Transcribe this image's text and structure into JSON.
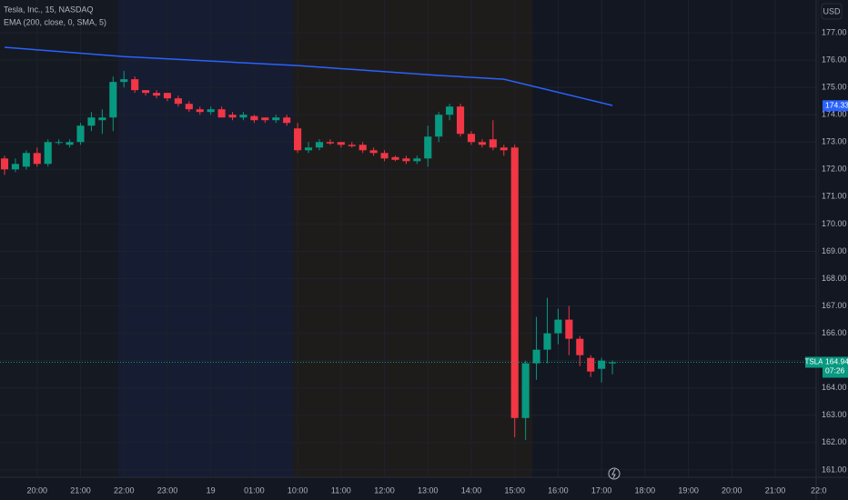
{
  "chart_data": {
    "type": "candlestick",
    "title": "Tesla, Inc., 15, NASDAQ",
    "indicator": "EMA (200, close, 0, SMA, 5)",
    "currency": "USD",
    "symbol": "TSLA",
    "countdown": "07:26",
    "up_color": "#089981",
    "down_color": "#f23645",
    "open": [
      172.4,
      172.0,
      172.1,
      172.6,
      172.2,
      173.0,
      172.9,
      173.0,
      173.6,
      173.8,
      173.9,
      175.2,
      175.3,
      174.9,
      174.8,
      174.8,
      174.6,
      174.4,
      174.2,
      174.1,
      174.2,
      174.0,
      173.9,
      173.95,
      173.9,
      173.8,
      173.9,
      173.5,
      172.7,
      172.8,
      173.0,
      173.0,
      172.9,
      172.9,
      172.7,
      172.6,
      172.45,
      172.4,
      172.3,
      172.4,
      173.2,
      174.0,
      174.3,
      173.3,
      173.0,
      173.1,
      172.8,
      172.8,
      162.9,
      164.9,
      165.4,
      166.0,
      166.5,
      165.8,
      165.1,
      164.7,
      164.9
    ],
    "high": [
      172.5,
      172.4,
      172.7,
      172.8,
      173.1,
      173.1,
      173.1,
      173.7,
      174.1,
      174.2,
      175.4,
      175.6,
      175.4,
      174.9,
      174.9,
      174.8,
      174.7,
      174.5,
      174.3,
      174.3,
      174.3,
      174.1,
      174.1,
      174.0,
      173.9,
      174.0,
      174.0,
      173.7,
      173.0,
      173.1,
      173.1,
      173.0,
      173.0,
      173.0,
      172.8,
      172.7,
      172.5,
      172.5,
      172.5,
      173.6,
      174.1,
      174.4,
      174.4,
      173.4,
      173.1,
      173.8,
      172.9,
      172.9,
      165.0,
      166.6,
      167.3,
      166.9,
      167.0,
      165.9,
      165.2,
      165.1,
      165.0
    ],
    "low": [
      171.8,
      171.9,
      172.0,
      172.1,
      172.1,
      172.9,
      172.8,
      172.9,
      173.4,
      173.3,
      173.4,
      175.0,
      174.8,
      174.7,
      174.6,
      174.5,
      174.3,
      174.1,
      174.0,
      174.0,
      173.9,
      173.8,
      173.8,
      173.7,
      173.7,
      173.7,
      173.6,
      172.6,
      172.6,
      172.7,
      172.9,
      172.8,
      172.8,
      172.6,
      172.5,
      172.3,
      172.3,
      172.2,
      172.2,
      172.1,
      173.0,
      173.8,
      173.2,
      172.9,
      172.8,
      172.7,
      172.5,
      162.2,
      162.1,
      164.3,
      164.9,
      165.6,
      165.2,
      164.8,
      164.4,
      164.2,
      164.5
    ],
    "close": [
      172.0,
      172.2,
      172.6,
      172.2,
      173.0,
      173.0,
      173.0,
      173.6,
      173.9,
      173.9,
      175.2,
      175.3,
      174.9,
      174.8,
      174.7,
      174.6,
      174.4,
      174.2,
      174.1,
      174.2,
      173.9,
      173.9,
      174.0,
      173.8,
      173.8,
      173.9,
      173.7,
      172.7,
      172.8,
      173.0,
      172.95,
      172.9,
      172.85,
      172.7,
      172.6,
      172.4,
      172.35,
      172.3,
      172.4,
      173.2,
      174.0,
      174.3,
      173.3,
      173.0,
      172.9,
      172.8,
      172.7,
      162.9,
      164.9,
      165.4,
      166.0,
      166.5,
      165.8,
      165.2,
      164.6,
      165.0,
      164.94
    ],
    "ema": {
      "color": "#2962ff",
      "x": [
        0,
        11,
        27,
        40,
        46,
        56
      ],
      "values": [
        176.47,
        176.13,
        175.8,
        175.44,
        175.3,
        174.34
      ]
    },
    "ema_last": 174.33,
    "last_price": 164.94,
    "xlim": [
      -0.42,
      74.77
    ],
    "xticks": [
      {
        "value": 3,
        "label": "20:00"
      },
      {
        "value": 7,
        "label": "21:00"
      },
      {
        "value": 11,
        "label": "22:00"
      },
      {
        "value": 15,
        "label": "23:00"
      },
      19,
      {
        "value": 23,
        "label": "01:00"
      },
      {
        "value": 27,
        "label": "10:00"
      },
      {
        "value": 31,
        "label": "11:00"
      },
      {
        "value": 35,
        "label": "12:00"
      },
      {
        "value": 39,
        "label": "13:00"
      },
      {
        "value": 43,
        "label": "14:00"
      },
      {
        "value": 47,
        "label": "15:00"
      },
      {
        "value": 51,
        "label": "16:00"
      },
      {
        "value": 55,
        "label": "17:00"
      },
      {
        "value": 59,
        "label": "18:00"
      },
      {
        "value": 63,
        "label": "19:00"
      },
      {
        "value": 67,
        "label": "20:00"
      },
      {
        "value": 71,
        "label": "21:00"
      },
      {
        "value": 75,
        "label": "22:0"
      }
    ],
    "ylim": [
      160.73,
      178.2
    ],
    "yticks": [
      {
        "value": 161,
        "label": "161.00"
      },
      {
        "value": 162,
        "label": "162.00"
      },
      {
        "value": 163,
        "label": "163.00"
      },
      {
        "value": 164,
        "label": "164.00"
      },
      {
        "value": 165,
        "label": "165.00"
      },
      {
        "value": 166,
        "label": "166.00"
      },
      {
        "value": 167,
        "label": "167.00"
      },
      {
        "value": 168,
        "label": "168.00"
      },
      {
        "value": 169,
        "label": "169.00"
      },
      {
        "value": 170,
        "label": "170.00"
      },
      {
        "value": 171,
        "label": "171.00"
      },
      {
        "value": 172,
        "label": "172.00"
      },
      {
        "value": 173,
        "label": "173.00"
      },
      {
        "value": 174,
        "label": "174.00"
      },
      {
        "value": 175,
        "label": "175.00"
      },
      {
        "value": 176,
        "label": "176.00"
      },
      {
        "value": 177,
        "label": "177.00"
      }
    ],
    "grid": true
  }
}
